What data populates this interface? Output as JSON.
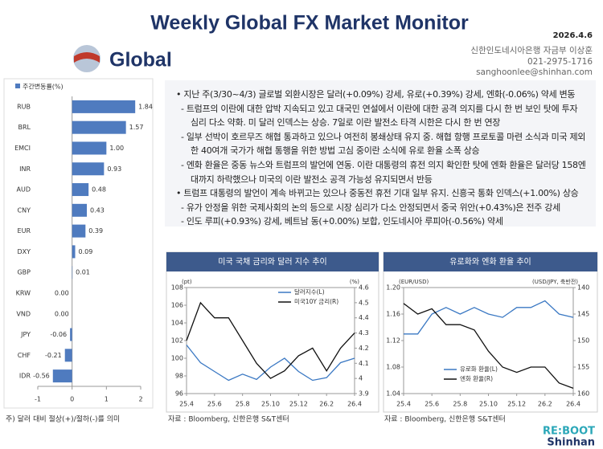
{
  "header": {
    "title": "Weekly Global FX Market Monitor",
    "date": "2026.4.6",
    "logo_text": "Global",
    "contact": [
      "신한인도네시아은행 자금부 이상훈",
      "021-2975-1716",
      "sanghoonlee@shinhan.com"
    ]
  },
  "text_box": {
    "items": [
      "• 지난 주(3/30~4/3) 글로벌 외환시장은 달러(+0.09%) 강세, 유로(+0.39%) 강세, 엔화(-0.06%) 약세 변동",
      "- 트럼프의 이란에 대한 압박 지속되고 있고 대국민 연설에서 이란에 대한 공격 의지를 다시 한 번 보인 탓에 투자 심리 다소 약화. 미 달러 인덱스는 상승. 7일로 이란 발전소 타격 시한은 다시 한 번 연장",
      "- 일부 선박이 호르무즈 해협 통과하고 있으나 여전히 봉쇄상태 유지 중. 해협 항행 프로토콜 마련 소식과 미국 제외한 40여개 국가가 해협 통행을 위한 방법 고심 중이란 소식에 유로 환율 소폭 상승",
      "- 엔화 환율은 중동 뉴스와 트럼프의 발언에 연동. 이란 대통령의 휴전 의지 확인한 탓에 엔화 환율은 달러당 158엔 대까지 하락했으나 미국의 이란 발전소 공격 가능성 유지되면서 반등",
      "• 트럼프 대통령의 발언이 계속 바뀌고는 있으나 중동전 휴전 기대 일부 유지. 신흥국 통화 인덱스(+1.00%) 상승",
      "- 유가 안정을 위한 국제사회의 논의 등으로 시장 심리가 다소 안정되면서 중국 위안(+0.43%)은 전주 강세",
      "- 인도 루피(+0.93%) 강세, 베트남 동(+0.00%) 보합, 인도네시아 루피아(-0.56%) 약세"
    ]
  },
  "chart_data": [
    {
      "type": "bar",
      "orientation": "horizontal",
      "categories": [
        "RUB",
        "BRL",
        "EMCI",
        "INR",
        "AUD",
        "CNY",
        "EUR",
        "DXY",
        "GBP",
        "KRW",
        "VND",
        "JPY",
        "CHF",
        "IDR"
      ],
      "series": [
        {
          "name": "주간변동률(%)",
          "color": "#4f7bbf",
          "values": [
            1.84,
            1.57,
            1.0,
            0.93,
            0.48,
            0.43,
            0.39,
            0.09,
            0.01,
            0.0,
            0.0,
            -0.06,
            -0.21,
            -0.56
          ],
          "value_labels": [
            "1.84",
            "1.57",
            "1.00",
            "0.93",
            "0.48",
            "0.43",
            "0.39",
            "0.09",
            "0.01",
            "0.00",
            "0.00",
            "-0.06",
            "-0.21",
            "-0.56"
          ]
        }
      ],
      "xlim": [
        -1,
        2
      ],
      "xticks": [
        -1,
        0,
        1,
        2
      ],
      "note": "주) 달러 대비 절상(+)/절하(-)를 의미"
    },
    {
      "type": "line",
      "title": "미국 국채 금리와 달러 지수 추이",
      "y_label": "(pt)",
      "y2_label": "(%)",
      "categories": [
        "25.4",
        null,
        "25.6",
        null,
        "25.8",
        null,
        "25.10",
        null,
        "25.12",
        null,
        "26.2",
        null,
        "26.4"
      ],
      "series": [
        {
          "name": "달러지수(L)",
          "color": "#3a78c3",
          "values": [
            101.5,
            99.5,
            98.5,
            97.5,
            98.2,
            97.6,
            99.0,
            100.0,
            98.5,
            97.5,
            97.8,
            99.5,
            100.0
          ]
        },
        {
          "name": "미국10Y 금리(R)",
          "color": "#111111",
          "axis": "y2",
          "values": [
            4.25,
            4.5,
            4.4,
            4.4,
            4.25,
            4.1,
            4.0,
            4.05,
            4.15,
            4.2,
            4.05,
            4.2,
            4.3
          ]
        }
      ],
      "ylim": [
        96,
        108
      ],
      "yticks": [
        96,
        98,
        100,
        102,
        104,
        106,
        108
      ],
      "y2lim": [
        3.9,
        4.6
      ],
      "y2ticks": [
        3.9,
        4.0,
        4.1,
        4.2,
        4.3,
        4.4,
        4.5,
        4.6
      ],
      "legend": "top-right",
      "source": "자료 : Bloomberg, 신한은행 S&T센터"
    },
    {
      "type": "line",
      "title": "유로화와 엔화 환율 추이",
      "y_label": "(EUR/USD)",
      "y2_label": "(USD/JPY, 축반전)",
      "categories": [
        "25.4",
        null,
        "25.6",
        null,
        "25.8",
        null,
        "25.10",
        null,
        "25.12",
        null,
        "26.2",
        null,
        "26.4"
      ],
      "series": [
        {
          "name": "유로화 환율(L)",
          "color": "#3a78c3",
          "values": [
            1.13,
            1.13,
            1.16,
            1.17,
            1.16,
            1.17,
            1.16,
            1.155,
            1.17,
            1.17,
            1.18,
            1.16,
            1.155
          ]
        },
        {
          "name": "엔화 환율(R)",
          "color": "#111111",
          "axis": "y2",
          "values": [
            143,
            145,
            144,
            147,
            147,
            148,
            152,
            155,
            156,
            155,
            155,
            158,
            159
          ]
        }
      ],
      "ylim": [
        1.04,
        1.2
      ],
      "yticks": [
        1.04,
        1.08,
        1.12,
        1.16,
        {
          "value": 1.2,
          "label": "1.20"
        }
      ],
      "y2lim": [
        160,
        140
      ],
      "y2ticks": [
        140,
        145,
        150,
        155,
        160
      ],
      "legend": "bottom-left",
      "source": "자료 : Bloomberg, 신한은행 S&T센터"
    }
  ],
  "footer": {
    "brand": [
      "RE:BOOT",
      "Shinhan"
    ]
  }
}
